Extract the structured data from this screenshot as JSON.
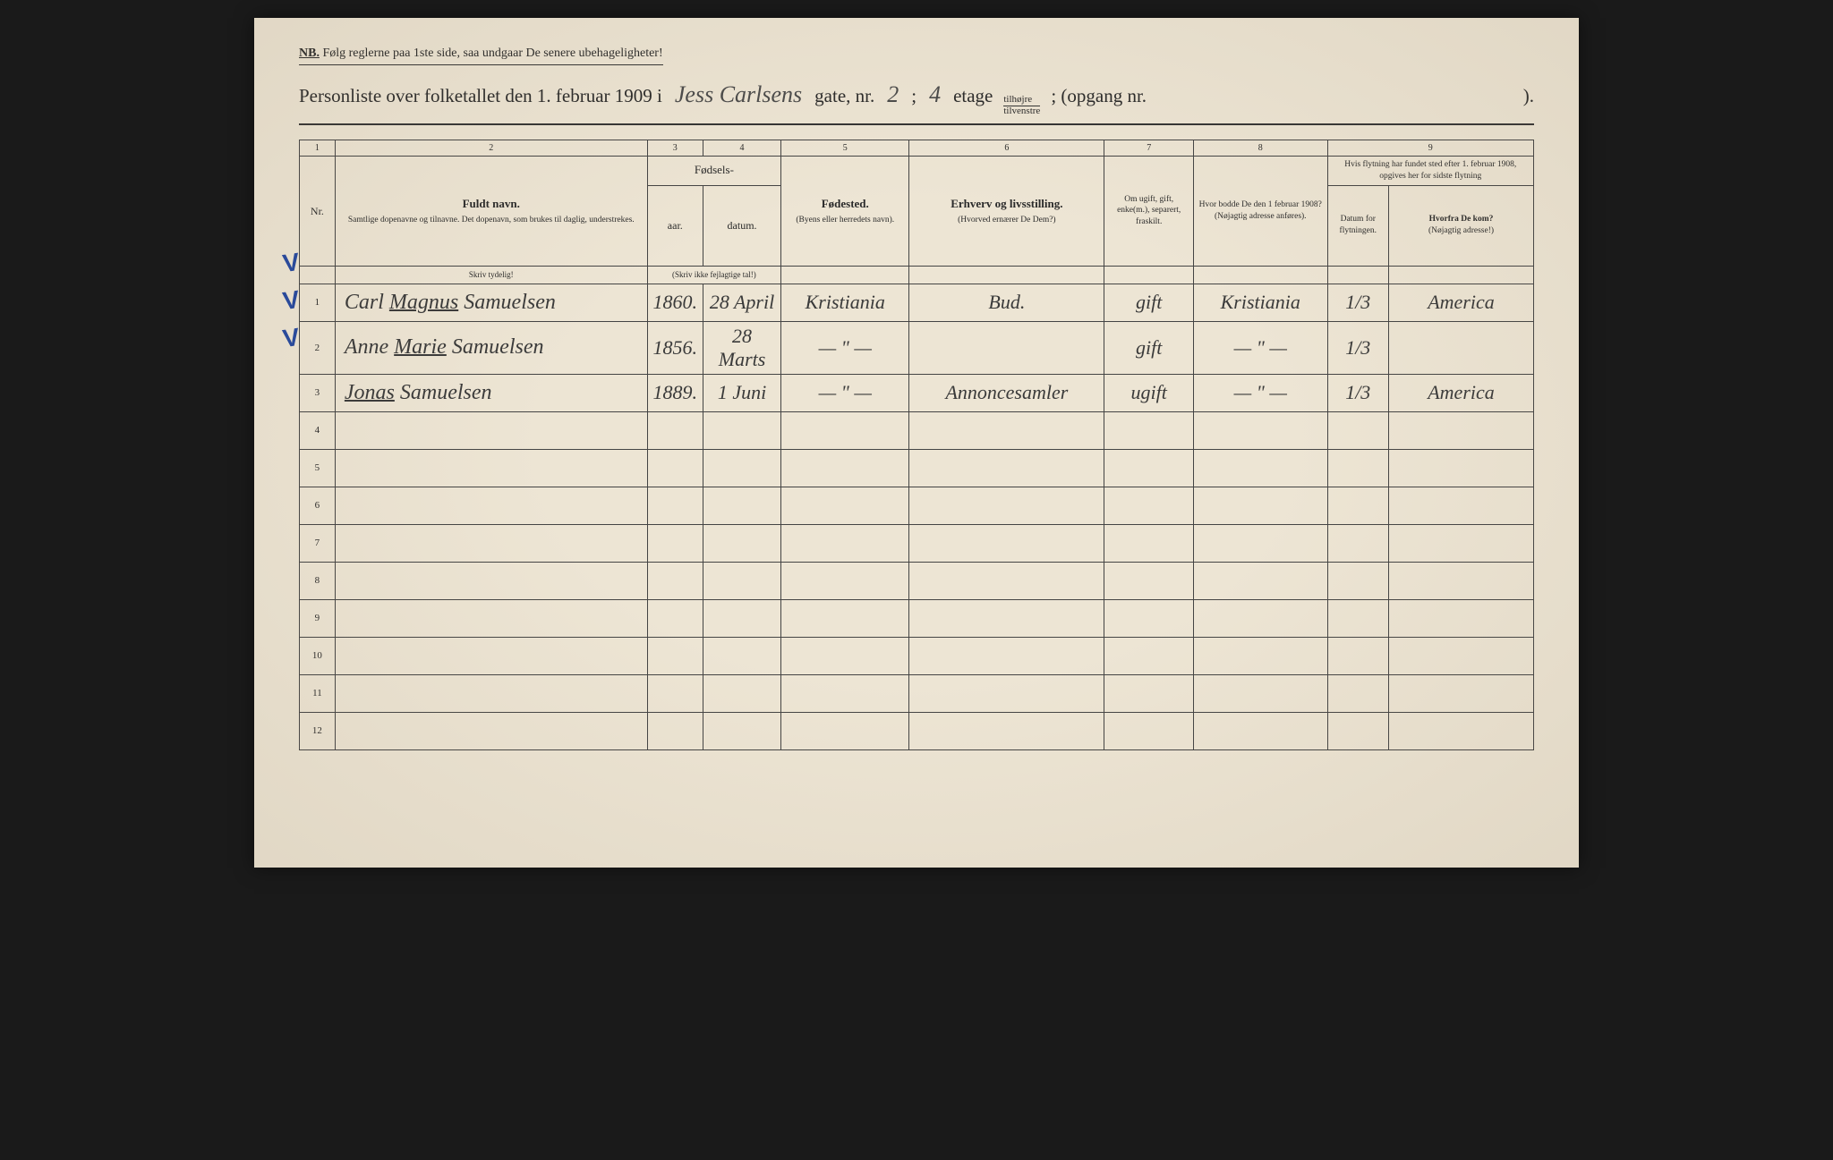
{
  "colors": {
    "paper": "#ede5d4",
    "ink": "#2a2a2a",
    "handwriting": "#3a3a3a",
    "checkmark": "#2a4a9a",
    "border": "#444"
  },
  "nb": {
    "label": "NB.",
    "text": "Følg reglerne paa 1ste side, saa undgaar De senere ubehageligheter!"
  },
  "title": {
    "prefix": "Personliste over folketallet den 1. februar 1909 i",
    "street_handwritten": "Jess Carlsens",
    "gate_nr_label": "gate, nr.",
    "gate_nr_value": "2",
    "separator": ";",
    "etage_value": "4",
    "etage_label": "etage",
    "fraction_top": "tilhøjre",
    "fraction_bottom": "tilvenstre",
    "opgang": "; (opgang nr.",
    "closing": ")."
  },
  "columns": {
    "nums": [
      "1",
      "2",
      "3",
      "4",
      "5",
      "6",
      "7",
      "8",
      "9"
    ],
    "headers": {
      "nr": "Nr.",
      "name_main": "Fuldt navn.",
      "name_sub": "Samtlige dopenavne og tilnavne. Det dopenavn, som brukes til daglig, understrekes.",
      "birth_group": "Fødsels-",
      "year": "aar.",
      "date": "datum.",
      "birth_instr": "(Skriv ikke fejlagtige tal!)",
      "place_main": "Fødested.",
      "place_sub": "(Byens eller herredets navn).",
      "occ_main": "Erhverv og livsstilling.",
      "occ_sub": "(Hvorved ernærer De Dem?)",
      "marital": "Om ugift, gift, enke(m.), separert, fraskilt.",
      "addr1908_main": "Hvor bodde De den 1 februar 1908?",
      "addr1908_sub": "(Nøjagtig adresse anføres).",
      "moved_main": "Hvis flytning har fundet sted efter 1. februar 1908, opgives her for sidste flytning",
      "moved_date": "Datum for flytningen.",
      "moved_from_main": "Hvorfra De kom?",
      "moved_from_sub": "(Nøjagtig adresse!)"
    },
    "write_clearly": "Skriv tydelig!"
  },
  "rows": [
    {
      "nr": "1",
      "name_prefix": "Carl",
      "name_underlined": "Magnus",
      "name_suffix": "Samuelsen",
      "year": "1860.",
      "date": "28 April",
      "place": "Kristiania",
      "occupation": "Bud.",
      "marital": "gift",
      "addr1908": "Kristiania",
      "move_date": "1/3",
      "from": "America",
      "checked": true
    },
    {
      "nr": "2",
      "name_prefix": "Anne",
      "name_underlined": "Marie",
      "name_suffix": "Samuelsen",
      "year": "1856.",
      "date": "28 Marts",
      "place": "— \" —",
      "occupation": "",
      "marital": "gift",
      "addr1908": "— \" —",
      "move_date": "1/3",
      "from": "",
      "checked": true
    },
    {
      "nr": "3",
      "name_prefix": "",
      "name_underlined": "Jonas",
      "name_suffix": "Samuelsen",
      "year": "1889.",
      "date": "1 Juni",
      "place": "— \" —",
      "occupation": "Annoncesamler",
      "marital": "ugift",
      "addr1908": "— \" —",
      "move_date": "1/3",
      "from": "America",
      "checked": true
    }
  ],
  "empty_rows": [
    "4",
    "5",
    "6",
    "7",
    "8",
    "9",
    "10",
    "11",
    "12"
  ]
}
